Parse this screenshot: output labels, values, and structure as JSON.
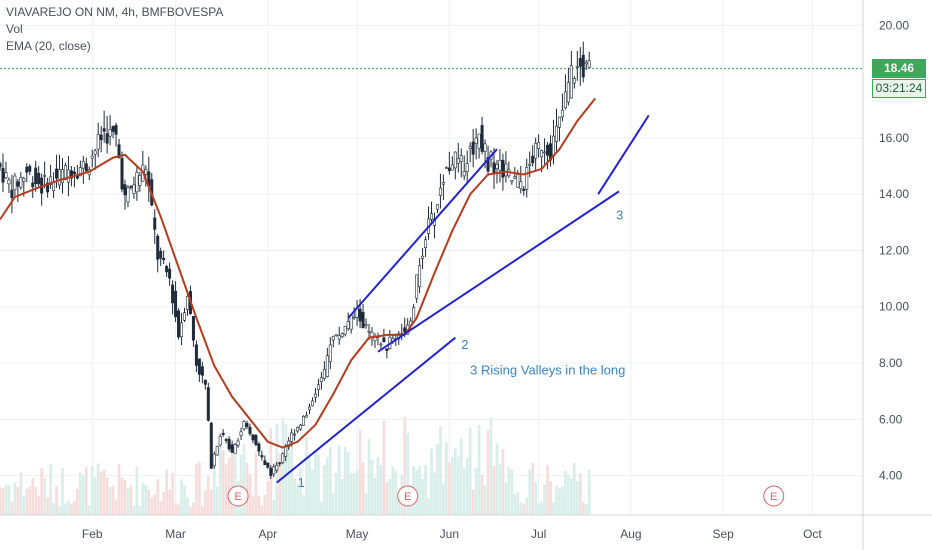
{
  "legend": {
    "symbol": "VIAVAREJO ON NM, 4h, BMFBOVESPA",
    "vol": "Vol",
    "ema": "EMA (20, close)"
  },
  "last_price": "18.46",
  "countdown": "03:21:24",
  "colors": {
    "candle_up": "#26a69a",
    "candle_down": "#ef5350",
    "candle_body": "#1e2b3a",
    "ema": "#b83b1d",
    "trendline": "#2323d6",
    "annotation": "#3b84c6",
    "earnings": "#e2615c",
    "price_line": "#3fa65a"
  },
  "chart_data": {
    "type": "candlestick",
    "title": "VIAVAREJO ON NM, 4h, BMFBOVESPA",
    "x_axis": {
      "ticks": [
        "Feb",
        "Mar",
        "Apr",
        "May",
        "Jun",
        "Jul",
        "Aug",
        "Sep",
        "Oct"
      ],
      "tick_days": [
        31,
        59,
        90,
        120,
        151,
        181,
        212,
        243,
        273
      ],
      "range_days": [
        0,
        290
      ]
    },
    "y_axis": {
      "ticks": [
        "20.00",
        "16.00",
        "14.00",
        "12.00",
        "10.00",
        "8.00",
        "6.00",
        "4.00"
      ],
      "tick_values": [
        20,
        16,
        14,
        12,
        10,
        8,
        6,
        4
      ],
      "range": [
        2.6,
        20.9
      ]
    },
    "price_series": [
      {
        "d": 0,
        "p": 15.1
      },
      {
        "d": 5,
        "p": 14.2
      },
      {
        "d": 10,
        "p": 14.8
      },
      {
        "d": 15,
        "p": 14.3
      },
      {
        "d": 20,
        "p": 14.6
      },
      {
        "d": 25,
        "p": 14.9
      },
      {
        "d": 30,
        "p": 15.0
      },
      {
        "d": 36,
        "p": 16.2
      },
      {
        "d": 40,
        "p": 16.0
      },
      {
        "d": 43,
        "p": 13.8
      },
      {
        "d": 47,
        "p": 14.6
      },
      {
        "d": 50,
        "p": 15.0
      },
      {
        "d": 54,
        "p": 11.8
      },
      {
        "d": 58,
        "p": 11.0
      },
      {
        "d": 61,
        "p": 9.0
      },
      {
        "d": 64,
        "p": 10.5
      },
      {
        "d": 67,
        "p": 8.0
      },
      {
        "d": 70,
        "p": 7.2
      },
      {
        "d": 72,
        "p": 4.4
      },
      {
        "d": 75,
        "p": 5.5
      },
      {
        "d": 79,
        "p": 4.9
      },
      {
        "d": 83,
        "p": 5.8
      },
      {
        "d": 86,
        "p": 5.3
      },
      {
        "d": 89,
        "p": 4.6
      },
      {
        "d": 92,
        "p": 4.1
      },
      {
        "d": 95,
        "p": 4.5
      },
      {
        "d": 97,
        "p": 5.1
      },
      {
        "d": 100,
        "p": 5.6
      },
      {
        "d": 104,
        "p": 6.2
      },
      {
        "d": 107,
        "p": 7.0
      },
      {
        "d": 110,
        "p": 7.6
      },
      {
        "d": 112,
        "p": 8.8
      },
      {
        "d": 115,
        "p": 9.0
      },
      {
        "d": 118,
        "p": 9.4
      },
      {
        "d": 121,
        "p": 9.8
      },
      {
        "d": 124,
        "p": 9.2
      },
      {
        "d": 127,
        "p": 8.8
      },
      {
        "d": 131,
        "p": 8.6
      },
      {
        "d": 135,
        "p": 9.1
      },
      {
        "d": 139,
        "p": 9.3
      },
      {
        "d": 141,
        "p": 10.9
      },
      {
        "d": 144,
        "p": 12.6
      },
      {
        "d": 147,
        "p": 13.3
      },
      {
        "d": 150,
        "p": 14.6
      },
      {
        "d": 153,
        "p": 15.3
      },
      {
        "d": 156,
        "p": 15.0
      },
      {
        "d": 159,
        "p": 15.5
      },
      {
        "d": 162,
        "p": 16.2
      },
      {
        "d": 165,
        "p": 15.2
      },
      {
        "d": 169,
        "p": 15.0
      },
      {
        "d": 173,
        "p": 14.5
      },
      {
        "d": 177,
        "p": 14.4
      },
      {
        "d": 180,
        "p": 15.3
      },
      {
        "d": 183,
        "p": 15.8
      },
      {
        "d": 186,
        "p": 15.6
      },
      {
        "d": 189,
        "p": 16.5
      },
      {
        "d": 191,
        "p": 17.4
      },
      {
        "d": 193,
        "p": 18.3
      },
      {
        "d": 196,
        "p": 18.5
      },
      {
        "d": 198,
        "p": 18.4
      }
    ],
    "ema_series": [
      {
        "d": 0,
        "p": 13.1
      },
      {
        "d": 5,
        "p": 13.9
      },
      {
        "d": 12,
        "p": 14.2
      },
      {
        "d": 20,
        "p": 14.5
      },
      {
        "d": 30,
        "p": 14.8
      },
      {
        "d": 38,
        "p": 15.3
      },
      {
        "d": 42,
        "p": 15.4
      },
      {
        "d": 48,
        "p": 14.8
      },
      {
        "d": 54,
        "p": 13.2
      },
      {
        "d": 60,
        "p": 11.4
      },
      {
        "d": 66,
        "p": 9.6
      },
      {
        "d": 72,
        "p": 7.9
      },
      {
        "d": 78,
        "p": 6.8
      },
      {
        "d": 84,
        "p": 6.0
      },
      {
        "d": 90,
        "p": 5.2
      },
      {
        "d": 95,
        "p": 5.0
      },
      {
        "d": 100,
        "p": 5.2
      },
      {
        "d": 106,
        "p": 5.8
      },
      {
        "d": 112,
        "p": 6.9
      },
      {
        "d": 118,
        "p": 8.1
      },
      {
        "d": 124,
        "p": 8.9
      },
      {
        "d": 130,
        "p": 9.0
      },
      {
        "d": 136,
        "p": 9.0
      },
      {
        "d": 140,
        "p": 9.6
      },
      {
        "d": 146,
        "p": 11.2
      },
      {
        "d": 152,
        "p": 12.7
      },
      {
        "d": 158,
        "p": 14.0
      },
      {
        "d": 164,
        "p": 14.7
      },
      {
        "d": 170,
        "p": 14.8
      },
      {
        "d": 176,
        "p": 14.7
      },
      {
        "d": 182,
        "p": 14.9
      },
      {
        "d": 188,
        "p": 15.6
      },
      {
        "d": 194,
        "p": 16.6
      },
      {
        "d": 200,
        "p": 17.4
      }
    ],
    "trendlines": [
      {
        "from": {
          "d": 93,
          "p": 3.75
        },
        "to": {
          "d": 153,
          "p": 8.9
        }
      },
      {
        "from": {
          "d": 117,
          "p": 9.6
        },
        "to": {
          "d": 167,
          "p": 15.6
        }
      },
      {
        "from": {
          "d": 127,
          "p": 8.4
        },
        "to": {
          "d": 208,
          "p": 14.1
        }
      },
      {
        "from": {
          "d": 201,
          "p": 14.0
        },
        "to": {
          "d": 218,
          "p": 16.8
        }
      }
    ],
    "annotations": [
      {
        "text": "1",
        "d": 100,
        "p": 3.6
      },
      {
        "text": "2",
        "d": 155,
        "p": 8.5
      },
      {
        "text": "3",
        "d": 207,
        "p": 13.1
      },
      {
        "text": "3 Rising Valleys in the long",
        "d": 158,
        "p": 7.6
      }
    ],
    "earnings": [
      {
        "label": "E",
        "d": 80
      },
      {
        "label": "E",
        "d": 137
      },
      {
        "label": "E",
        "d": 260
      }
    ],
    "last_price": 18.46
  }
}
